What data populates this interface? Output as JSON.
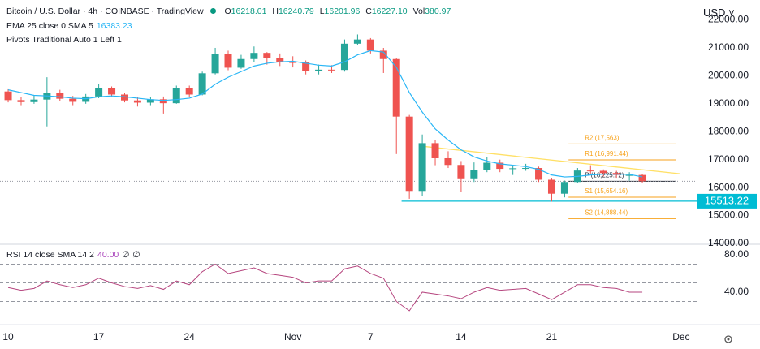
{
  "chart_data": [
    {
      "type": "candlestick",
      "title": "Bitcoin / U.S. Dollar · 4h · COINBASE · TradingView",
      "ohlc": [
        {
          "key": "O",
          "value": "16218.01"
        },
        {
          "key": "H",
          "value": "16240.79"
        },
        {
          "key": "L",
          "value": "16201.96"
        },
        {
          "key": "C",
          "value": "16227.10"
        },
        {
          "key": "Vol",
          "value": "380.97"
        }
      ],
      "currency": "USD",
      "x": [
        0,
        1,
        2,
        3,
        4,
        5,
        6,
        7,
        8,
        9,
        10,
        11,
        12,
        13,
        14,
        15,
        16,
        17,
        18,
        19,
        20,
        21,
        22,
        23,
        24,
        25,
        26,
        27,
        28,
        29,
        30,
        31,
        32,
        33,
        34,
        35,
        36,
        37,
        38,
        39,
        40,
        41,
        42,
        43,
        44,
        45,
        46,
        47,
        48,
        49
      ],
      "open": [
        19440,
        19130,
        19060,
        19150,
        19380,
        19180,
        19070,
        19260,
        19550,
        19330,
        19120,
        19040,
        19160,
        19020,
        19570,
        19330,
        20090,
        20770,
        20290,
        20600,
        20820,
        20630,
        20490,
        20480,
        20160,
        20220,
        20210,
        21150,
        21300,
        20900,
        20600,
        18540,
        15880,
        17590,
        17050,
        16810,
        16330,
        16620,
        16890,
        16670,
        16690,
        16700,
        16280,
        15780,
        16200,
        16610,
        16600,
        16520,
        16450,
        16450
      ],
      "high": [
        19520,
        19250,
        19300,
        19950,
        19500,
        19280,
        19350,
        19700,
        19620,
        19400,
        19250,
        19250,
        19260,
        19650,
        19650,
        20150,
        21000,
        20900,
        20750,
        21050,
        20850,
        20800,
        20700,
        20550,
        20400,
        20380,
        21300,
        21480,
        21350,
        21000,
        20650,
        18600,
        17900,
        17700,
        17300,
        16950,
        16900,
        17100,
        17000,
        16800,
        16850,
        16750,
        16350,
        16250,
        16700,
        16800,
        16650,
        16600,
        16550,
        16480
      ],
      "low": [
        19050,
        18950,
        19000,
        18190,
        19100,
        18950,
        19000,
        19200,
        19250,
        19050,
        18900,
        18950,
        18650,
        19000,
        19250,
        19300,
        20050,
        20200,
        20250,
        20500,
        20400,
        20350,
        20300,
        20050,
        20050,
        20100,
        20150,
        21100,
        20800,
        20100,
        17200,
        15600,
        15700,
        16800,
        16700,
        15850,
        16200,
        16550,
        16550,
        16450,
        16600,
        16200,
        15500,
        15650,
        16150,
        16500,
        16400,
        16350,
        16250,
        16150
      ],
      "close": [
        19130,
        19060,
        19150,
        19380,
        19180,
        19070,
        19260,
        19550,
        19330,
        19120,
        19040,
        19160,
        19020,
        19570,
        19330,
        20090,
        20770,
        20290,
        20600,
        20820,
        20630,
        20490,
        20480,
        20160,
        20220,
        20210,
        21150,
        21300,
        20900,
        20600,
        18540,
        15880,
        17590,
        17050,
        16810,
        16330,
        16620,
        16890,
        16670,
        16690,
        16700,
        16280,
        15780,
        16200,
        16610,
        16600,
        16520,
        16450,
        16450,
        16227
      ],
      "up_color": "#26a69a",
      "down_color": "#ef5350",
      "series": [
        {
          "name": "EMA 25 close 0 SMA 5",
          "color": "#29b6f6",
          "values": [
            19500,
            19400,
            19300,
            19280,
            19250,
            19200,
            19180,
            19250,
            19280,
            19250,
            19200,
            19150,
            19120,
            19150,
            19200,
            19350,
            19700,
            19950,
            20150,
            20350,
            20450,
            20500,
            20520,
            20450,
            20380,
            20350,
            20500,
            20750,
            20900,
            20850,
            20300,
            19400,
            18700,
            18100,
            17700,
            17350,
            17100,
            16950,
            16850,
            16800,
            16750,
            16650,
            16450,
            16380,
            16400,
            16450,
            16480,
            16480,
            16470,
            16383.23
          ]
        }
      ],
      "pivots_name": "Pivots Traditional Auto 1 Left 1",
      "pivot_x": [
        43.3,
        51.6
      ],
      "pivots": [
        {
          "label": "R2 (17,563)",
          "value": 17563
        },
        {
          "label": "R1 (16,991.44)",
          "value": 16991.44
        },
        {
          "label": "P (16,225.72)",
          "value": 16225.72
        },
        {
          "label": "S1 (15,654.16)",
          "value": 15654.16
        },
        {
          "label": "S2 (14,888.44)",
          "value": 14888.44
        }
      ],
      "pivot_color": "#f7a21b",
      "pivot_p_color": "#2a2e39",
      "horizontal_line": {
        "value": 15513.22,
        "label": "15513.22",
        "from_x": 30.4,
        "color": "#00bcd4"
      },
      "trend_line": {
        "x": [
          32,
          51.9
        ],
        "values": [
          17480,
          16494
        ],
        "color": "#ffe066"
      },
      "xlim": [
        -0.63,
        53.2
      ],
      "ylim": [
        14000,
        22713
      ],
      "yticks": [
        {
          "value": 14000,
          "label": "14000.00"
        },
        {
          "value": 15000,
          "label": "15000.00"
        },
        {
          "value": 16000,
          "label": "16000.00"
        },
        {
          "value": 17000,
          "label": "17000.00"
        },
        {
          "value": 18000,
          "label": "18000.00"
        },
        {
          "value": 19000,
          "label": "19000.00"
        },
        {
          "value": 20000,
          "label": "20000.00"
        },
        {
          "value": 21000,
          "label": "21000.00"
        },
        {
          "value": 22000,
          "label": "22000.00"
        }
      ],
      "grid": false
    },
    {
      "type": "line",
      "x": [
        0,
        1,
        2,
        3,
        4,
        5,
        6,
        7,
        8,
        9,
        10,
        11,
        12,
        13,
        14,
        15,
        16,
        17,
        18,
        19,
        20,
        21,
        22,
        23,
        24,
        25,
        26,
        27,
        28,
        29,
        30,
        31,
        32,
        33,
        34,
        35,
        36,
        37,
        38,
        39,
        40,
        41,
        42,
        43,
        44,
        45,
        46,
        47,
        48,
        49
      ],
      "series": [
        {
          "name": "RSI 14 close SMA 14 2",
          "color": "#b6467f",
          "legend_value": "40.00",
          "values": [
            45,
            42,
            44,
            52,
            48,
            45,
            48,
            55,
            50,
            46,
            44,
            47,
            43,
            52,
            48,
            62,
            70,
            60,
            63,
            66,
            60,
            58,
            56,
            50,
            52,
            52,
            65,
            68,
            60,
            55,
            30,
            20,
            40,
            38,
            36,
            33,
            40,
            45,
            42,
            43,
            44,
            38,
            32,
            40,
            48,
            48,
            45,
            44,
            40,
            40
          ]
        }
      ],
      "legend_extra": [
        "∅",
        "∅"
      ],
      "levels": [
        70,
        50,
        30
      ],
      "xlim": [
        -0.63,
        53.2
      ],
      "ylim": [
        5.2,
        90.4
      ],
      "yticks": [
        {
          "value": 40,
          "label": "40.00"
        },
        {
          "value": 80,
          "label": "80.00"
        }
      ],
      "xticks": [
        {
          "value": 0,
          "label": "10"
        },
        {
          "value": 7,
          "label": "17"
        },
        {
          "value": 14,
          "label": "24"
        },
        {
          "value": 22,
          "label": "Nov"
        },
        {
          "value": 28,
          "label": "7"
        },
        {
          "value": 35,
          "label": "14"
        },
        {
          "value": 42,
          "label": "21"
        },
        {
          "value": 52,
          "label": "Dec"
        }
      ]
    }
  ]
}
